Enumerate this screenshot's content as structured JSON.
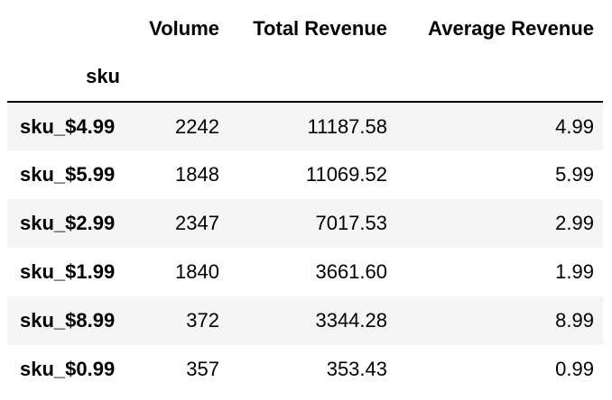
{
  "table": {
    "columns": [
      "Volume",
      "Total Revenue",
      "Average Revenue"
    ],
    "index_name": "sku",
    "rows": [
      {
        "sku": "sku_$4.99",
        "volume": "2242",
        "total_revenue": "11187.58",
        "average_revenue": "4.99"
      },
      {
        "sku": "sku_$5.99",
        "volume": "1848",
        "total_revenue": "11069.52",
        "average_revenue": "5.99"
      },
      {
        "sku": "sku_$2.99",
        "volume": "2347",
        "total_revenue": "7017.53",
        "average_revenue": "2.99"
      },
      {
        "sku": "sku_$1.99",
        "volume": "1840",
        "total_revenue": "3661.60",
        "average_revenue": "1.99"
      },
      {
        "sku": "sku_$8.99",
        "volume": "372",
        "total_revenue": "3344.28",
        "average_revenue": "8.99"
      },
      {
        "sku": "sku_$0.99",
        "volume": "357",
        "total_revenue": "353.43",
        "average_revenue": "0.99"
      }
    ]
  },
  "colors": {
    "stripe": "#f5f5f5",
    "rule": "#000000",
    "text": "#000000"
  }
}
